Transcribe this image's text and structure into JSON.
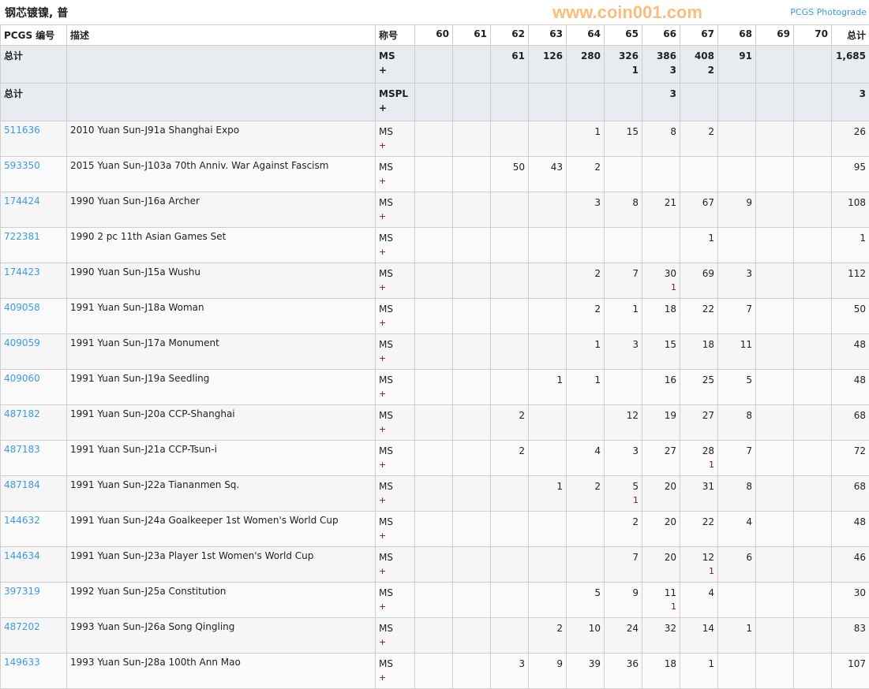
{
  "title": "钢芯镀镍, 普",
  "photograde_link": "PCGS Photograde",
  "headers": {
    "code": "PCGS 编号",
    "desc": "描述",
    "designation": "称号",
    "grades": [
      "60",
      "61",
      "62",
      "63",
      "64",
      "65",
      "66",
      "67",
      "68",
      "69",
      "70"
    ],
    "total": "总计"
  },
  "totals": [
    {
      "label": "总计",
      "designation": "MS",
      "plus_mark": "+",
      "values": [
        "",
        "",
        "61",
        "126",
        "280",
        "326",
        "386",
        "408",
        "91",
        "",
        ""
      ],
      "plus": [
        "",
        "",
        "",
        "",
        "",
        "1",
        "3",
        "2",
        "",
        "",
        ""
      ],
      "total": "1,685"
    },
    {
      "label": "总计",
      "designation": "MSPL",
      "plus_mark": "+",
      "values": [
        "",
        "",
        "",
        "",
        "",
        "",
        "3",
        "",
        "",
        "",
        ""
      ],
      "plus": [
        "",
        "",
        "",
        "",
        "",
        "",
        "",
        "",
        "",
        "",
        ""
      ],
      "total": "3"
    }
  ],
  "rows": [
    {
      "code": "511636",
      "desc": "2010 Yuan Sun-J91a Shanghai Expo",
      "values": [
        "",
        "",
        "",
        "",
        "1",
        "15",
        "8",
        "2",
        "",
        "",
        ""
      ],
      "plus": [
        "",
        "",
        "",
        "",
        "",
        "",
        "",
        "",
        "",
        "",
        ""
      ],
      "total": "26"
    },
    {
      "code": "593350",
      "desc": "2015 Yuan Sun-J103a 70th Anniv. War Against Fascism",
      "values": [
        "",
        "",
        "50",
        "43",
        "2",
        "",
        "",
        "",
        "",
        "",
        ""
      ],
      "plus": [
        "",
        "",
        "",
        "",
        "",
        "",
        "",
        "",
        "",
        "",
        ""
      ],
      "total": "95"
    },
    {
      "code": "174424",
      "desc": "1990 Yuan Sun-J16a Archer",
      "values": [
        "",
        "",
        "",
        "",
        "3",
        "8",
        "21",
        "67",
        "9",
        "",
        ""
      ],
      "plus": [
        "",
        "",
        "",
        "",
        "",
        "",
        "",
        "",
        "",
        "",
        ""
      ],
      "total": "108"
    },
    {
      "code": "722381",
      "desc": "1990 2 pc 11th Asian Games Set",
      "values": [
        "",
        "",
        "",
        "",
        "",
        "",
        "",
        "1",
        "",
        "",
        ""
      ],
      "plus": [
        "",
        "",
        "",
        "",
        "",
        "",
        "",
        "",
        "",
        "",
        ""
      ],
      "total": "1"
    },
    {
      "code": "174423",
      "desc": "1990 Yuan Sun-J15a Wushu",
      "values": [
        "",
        "",
        "",
        "",
        "2",
        "7",
        "30",
        "69",
        "3",
        "",
        ""
      ],
      "plus": [
        "",
        "",
        "",
        "",
        "",
        "",
        "1",
        "",
        "",
        "",
        ""
      ],
      "total": "112"
    },
    {
      "code": "409058",
      "desc": "1991 Yuan Sun-J18a Woman",
      "values": [
        "",
        "",
        "",
        "",
        "2",
        "1",
        "18",
        "22",
        "7",
        "",
        ""
      ],
      "plus": [
        "",
        "",
        "",
        "",
        "",
        "",
        "",
        "",
        "",
        "",
        ""
      ],
      "total": "50"
    },
    {
      "code": "409059",
      "desc": "1991 Yuan Sun-J17a Monument",
      "values": [
        "",
        "",
        "",
        "",
        "1",
        "3",
        "15",
        "18",
        "11",
        "",
        ""
      ],
      "plus": [
        "",
        "",
        "",
        "",
        "",
        "",
        "",
        "",
        "",
        "",
        ""
      ],
      "total": "48"
    },
    {
      "code": "409060",
      "desc": "1991 Yuan Sun-J19a Seedling",
      "values": [
        "",
        "",
        "",
        "1",
        "1",
        "",
        "16",
        "25",
        "5",
        "",
        ""
      ],
      "plus": [
        "",
        "",
        "",
        "",
        "",
        "",
        "",
        "",
        "",
        "",
        ""
      ],
      "total": "48"
    },
    {
      "code": "487182",
      "desc": "1991 Yuan Sun-J20a CCP-Shanghai",
      "values": [
        "",
        "",
        "2",
        "",
        "",
        "12",
        "19",
        "27",
        "8",
        "",
        ""
      ],
      "plus": [
        "",
        "",
        "",
        "",
        "",
        "",
        "",
        "",
        "",
        "",
        ""
      ],
      "total": "68"
    },
    {
      "code": "487183",
      "desc": "1991 Yuan Sun-J21a CCP-Tsun-i",
      "values": [
        "",
        "",
        "2",
        "",
        "4",
        "3",
        "27",
        "28",
        "7",
        "",
        ""
      ],
      "plus": [
        "",
        "",
        "",
        "",
        "",
        "",
        "",
        "1",
        "",
        "",
        ""
      ],
      "total": "72"
    },
    {
      "code": "487184",
      "desc": "1991 Yuan Sun-J22a Tiananmen Sq.",
      "values": [
        "",
        "",
        "",
        "1",
        "2",
        "5",
        "20",
        "31",
        "8",
        "",
        ""
      ],
      "plus": [
        "",
        "",
        "",
        "",
        "",
        "1",
        "",
        "",
        "",
        "",
        ""
      ],
      "total": "68"
    },
    {
      "code": "144632",
      "desc": "1991 Yuan Sun-J24a Goalkeeper 1st Women's World Cup",
      "values": [
        "",
        "",
        "",
        "",
        "",
        "2",
        "20",
        "22",
        "4",
        "",
        ""
      ],
      "plus": [
        "",
        "",
        "",
        "",
        "",
        "",
        "",
        "",
        "",
        "",
        ""
      ],
      "total": "48"
    },
    {
      "code": "144634",
      "desc": "1991 Yuan Sun-J23a Player 1st Women's World Cup",
      "values": [
        "",
        "",
        "",
        "",
        "",
        "7",
        "20",
        "12",
        "6",
        "",
        ""
      ],
      "plus": [
        "",
        "",
        "",
        "",
        "",
        "",
        "",
        "1",
        "",
        "",
        ""
      ],
      "total": "46"
    },
    {
      "code": "397319",
      "desc": "1992 Yuan Sun-J25a Constitution",
      "values": [
        "",
        "",
        "",
        "",
        "5",
        "9",
        "11",
        "4",
        "",
        "",
        ""
      ],
      "plus": [
        "",
        "",
        "",
        "",
        "",
        "",
        "1",
        "",
        "",
        "",
        ""
      ],
      "total": "30"
    },
    {
      "code": "487202",
      "desc": "1993 Yuan Sun-J26a Song Qingling",
      "values": [
        "",
        "",
        "",
        "2",
        "10",
        "24",
        "32",
        "14",
        "1",
        "",
        ""
      ],
      "plus": [
        "",
        "",
        "",
        "",
        "",
        "",
        "",
        "",
        "",
        "",
        ""
      ],
      "total": "83"
    },
    {
      "code": "149633",
      "desc": "1993 Yuan Sun-J28a 100th Ann Mao",
      "values": [
        "",
        "",
        "3",
        "9",
        "39",
        "36",
        "18",
        "1",
        "",
        "",
        ""
      ],
      "plus": [
        "",
        "",
        "",
        "",
        "",
        "",
        "",
        "",
        "",
        "",
        ""
      ],
      "total": "107"
    }
  ],
  "row_designation": "MS",
  "row_plus_mark": "+",
  "watermark": "www.coin001.com",
  "colors": {
    "link": "#3a9be8",
    "total_bg": "#e8ecf0",
    "plus_value": "#7a1a0a"
  }
}
